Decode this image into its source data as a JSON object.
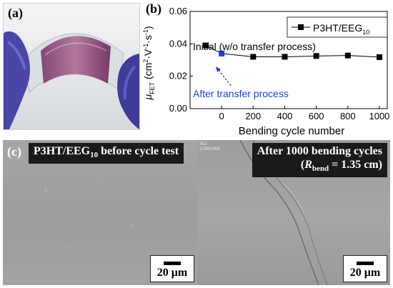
{
  "panel_a": {
    "label": "(a)"
  },
  "panel_b": {
    "label": "(b)",
    "legend": "P3HT/EEG",
    "legend_sub": "10",
    "annotation_initial": "Initial (w/o transfer process)",
    "annotation_after": "After transfer process",
    "colors": {
      "series": "#000000",
      "highlight": "#1f3fe0"
    }
  },
  "chart_data": {
    "type": "line",
    "xlabel": "Bending cycle number",
    "ylabel": "μFET (cm²·V⁻¹·s⁻¹)",
    "xlim": [
      -200,
      1050
    ],
    "ylim": [
      0.0,
      0.06
    ],
    "xticks": [
      "0",
      "200",
      "400",
      "600",
      "800",
      "1000"
    ],
    "yticks": [
      "0.00",
      "0.02",
      "0.04",
      "0.06"
    ],
    "series": [
      {
        "name": "P3HT/EEG10",
        "x": [
          -100,
          0,
          200,
          400,
          600,
          800,
          1000
        ],
        "y": [
          0.039,
          0.034,
          0.032,
          0.032,
          0.0325,
          0.0328,
          0.0318
        ]
      }
    ],
    "highlight_point": {
      "x": 0,
      "y": 0.034
    }
  },
  "panel_c": {
    "label": "(c)",
    "left_title": "P3HT/EEG",
    "left_title_sub": "10",
    "left_title_rest": " before cycle test",
    "right_title_line1": "After 1000 bending cycles",
    "right_title_r": "R",
    "right_title_bend": "bend",
    "right_title_rest": " = 1.35 cm)",
    "right_title_open": "(",
    "scale_left": "20 μm",
    "scale_right": "20 μm",
    "right_corner_line1": "SEI",
    "right_corner_line2": "1280x960"
  }
}
